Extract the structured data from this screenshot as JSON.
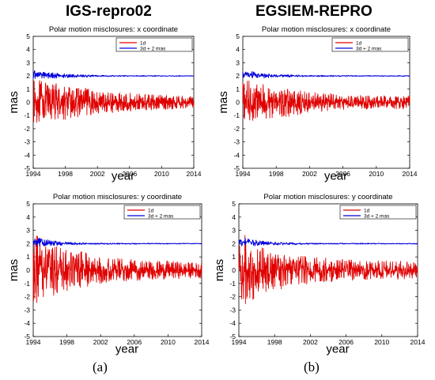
{
  "columns": [
    {
      "title": "IGS-repro02",
      "caption": "(a)"
    },
    {
      "title": "EGSIEM-REPRO",
      "caption": "(b)"
    }
  ],
  "chart_data": [
    {
      "type": "line",
      "title": "Polar motion misclosures: x coordinate",
      "xlabel": "year",
      "ylabel": "mas",
      "xlim": [
        1994,
        2014
      ],
      "ylim": [
        -5,
        5
      ],
      "xticks": [
        "1994",
        "1998",
        "2002",
        "2006",
        "2010",
        "2014"
      ],
      "yticks": [
        "-5",
        "-4",
        "-3",
        "-2",
        "-1",
        "0",
        "1",
        "2",
        "3",
        "4",
        "5"
      ],
      "legend_position": "top-right",
      "series": [
        {
          "name": "1d",
          "color": "#e00000",
          "x": [
            1994,
            1995,
            1996,
            1997,
            1998,
            1999,
            2000,
            2001,
            2002,
            2004,
            2006,
            2008,
            2010,
            2012,
            2014
          ],
          "y": [
            0,
            0.1,
            -0.1,
            0.1,
            0,
            -0.1,
            0.1,
            0,
            0,
            0,
            0,
            0,
            0,
            0,
            0
          ],
          "spread": [
            1.7,
            1.6,
            1.5,
            1.4,
            1.3,
            1.2,
            1.1,
            1.0,
            0.9,
            0.8,
            0.7,
            0.6,
            0.55,
            0.5,
            0.5
          ]
        },
        {
          "name": "3d + 2 mas",
          "color": "#0000dd",
          "x": [
            1994,
            1995,
            1996,
            1998,
            2000,
            2002,
            2006,
            2010,
            2014
          ],
          "y": [
            2.1,
            2.1,
            2.05,
            2.0,
            2.0,
            2.0,
            2.0,
            2.0,
            2.0
          ],
          "spread": [
            0.35,
            0.3,
            0.25,
            0.15,
            0.1,
            0.06,
            0.04,
            0.03,
            0.03
          ]
        }
      ]
    },
    {
      "type": "line",
      "title": "Polar motion misclosures: x coordinate",
      "xlabel": "year",
      "ylabel": "mas",
      "xlim": [
        1994,
        2014
      ],
      "ylim": [
        -5,
        5
      ],
      "xticks": [
        "1994",
        "1998",
        "2002",
        "2006",
        "2010",
        "2014"
      ],
      "yticks": [
        "-5",
        "-4",
        "-3",
        "-2",
        "-1",
        "0",
        "1",
        "2",
        "3",
        "4",
        "5"
      ],
      "legend_position": "top-right",
      "series": [
        {
          "name": "1d",
          "color": "#e00000",
          "x": [
            1994,
            1995,
            1996,
            1997,
            1998,
            1999,
            2000,
            2001,
            2002,
            2004,
            2006,
            2008,
            2010,
            2012,
            2014
          ],
          "y": [
            0,
            0.1,
            0,
            0,
            0,
            -0.1,
            0,
            0,
            0,
            0,
            0,
            0,
            0,
            0,
            0
          ],
          "spread": [
            1.7,
            1.5,
            1.4,
            1.3,
            1.2,
            1.1,
            1.0,
            0.9,
            0.8,
            0.7,
            0.6,
            0.55,
            0.5,
            0.5,
            0.5
          ]
        },
        {
          "name": "3d + 2 mas",
          "color": "#0000dd",
          "x": [
            1994,
            1995,
            1996,
            1998,
            2000,
            2002,
            2006,
            2010,
            2014
          ],
          "y": [
            2.1,
            2.1,
            2.0,
            2.0,
            2.0,
            2.0,
            2.0,
            2.0,
            2.0
          ],
          "spread": [
            0.3,
            0.25,
            0.2,
            0.12,
            0.08,
            0.05,
            0.04,
            0.03,
            0.03
          ]
        }
      ]
    },
    {
      "type": "line",
      "title": "Polar motion misclosures: y coordinate",
      "xlabel": "year",
      "ylabel": "mas",
      "xlim": [
        1994,
        2014
      ],
      "ylim": [
        -5,
        5
      ],
      "xticks": [
        "1994",
        "1998",
        "2002",
        "2006",
        "2010",
        "2014"
      ],
      "yticks": [
        "-5",
        "-4",
        "-3",
        "-2",
        "-1",
        "0",
        "1",
        "2",
        "3",
        "4",
        "5"
      ],
      "legend_position": "top-right",
      "series": [
        {
          "name": "1d",
          "color": "#e00000",
          "x": [
            1994,
            1995,
            1996,
            1997,
            1998,
            1999,
            2000,
            2001,
            2002,
            2004,
            2006,
            2008,
            2010,
            2012,
            2014
          ],
          "y": [
            0,
            0.1,
            0,
            0,
            -0.1,
            0,
            0,
            0,
            0,
            0,
            0,
            0,
            0,
            0,
            0
          ],
          "spread": [
            2.8,
            2.4,
            2.0,
            1.8,
            1.6,
            1.5,
            1.4,
            1.2,
            1.0,
            0.9,
            0.8,
            0.7,
            0.7,
            0.6,
            0.6
          ]
        },
        {
          "name": "3d + 2 mas",
          "color": "#0000dd",
          "x": [
            1994,
            1995,
            1996,
            1998,
            2000,
            2002,
            2006,
            2010,
            2014
          ],
          "y": [
            2.1,
            2.1,
            2.05,
            2.0,
            2.0,
            2.0,
            2.0,
            2.0,
            2.0
          ],
          "spread": [
            0.35,
            0.3,
            0.2,
            0.12,
            0.08,
            0.05,
            0.04,
            0.03,
            0.03
          ]
        }
      ]
    },
    {
      "type": "line",
      "title": "Polar motion misclosures: y coordinate",
      "xlabel": "year",
      "ylabel": "mas",
      "xlim": [
        1994,
        2014
      ],
      "ylim": [
        -5,
        5
      ],
      "xticks": [
        "1994",
        "1998",
        "2002",
        "2006",
        "2010",
        "2014"
      ],
      "yticks": [
        "-5",
        "-4",
        "-3",
        "-2",
        "-1",
        "0",
        "1",
        "2",
        "3",
        "4",
        "5"
      ],
      "legend_position": "top-right",
      "series": [
        {
          "name": "1d",
          "color": "#e00000",
          "x": [
            1994,
            1995,
            1996,
            1997,
            1998,
            1999,
            2000,
            2001,
            2002,
            2004,
            2006,
            2008,
            2010,
            2012,
            2014
          ],
          "y": [
            0,
            0,
            0,
            0,
            0,
            0,
            0,
            0,
            0,
            0,
            0,
            0,
            0,
            0,
            0
          ],
          "spread": [
            3.5,
            2.6,
            2.0,
            1.7,
            1.5,
            1.4,
            1.3,
            1.1,
            1.0,
            0.9,
            0.8,
            0.75,
            0.7,
            0.7,
            0.6
          ]
        },
        {
          "name": "3d + 2 mas",
          "color": "#0000dd",
          "x": [
            1994,
            1995,
            1996,
            1998,
            2000,
            2002,
            2006,
            2010,
            2014
          ],
          "y": [
            2.1,
            2.1,
            2.05,
            2.0,
            2.0,
            2.0,
            2.0,
            2.0,
            2.0
          ],
          "spread": [
            0.35,
            0.3,
            0.2,
            0.12,
            0.08,
            0.05,
            0.04,
            0.03,
            0.03
          ]
        }
      ]
    }
  ]
}
